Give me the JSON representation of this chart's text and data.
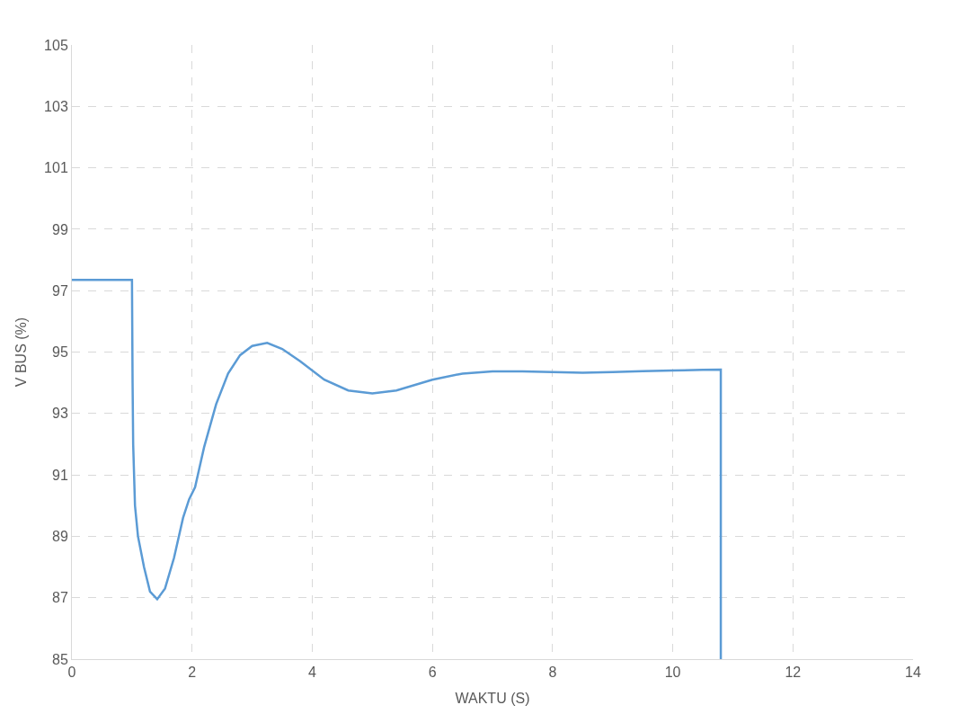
{
  "chart_data": {
    "type": "line",
    "xlabel": "WAKTU (S)",
    "ylabel": "V BUS (%)",
    "xlim": [
      0,
      14
    ],
    "xticks": [
      0,
      2,
      4,
      6,
      8,
      10,
      12,
      14
    ],
    "ylim": [
      85,
      105
    ],
    "yticks": [
      85,
      87,
      89,
      91,
      93,
      95,
      97,
      99,
      101,
      103,
      105
    ],
    "grid": true,
    "legend": false,
    "marker": "none",
    "line_style": "solid",
    "series": [
      {
        "color": "#5b9bd5",
        "x": [
          0,
          1.0,
          1.01,
          1.02,
          1.05,
          1.1,
          1.2,
          1.3,
          1.42,
          1.55,
          1.7,
          1.85,
          1.95,
          2.05,
          2.2,
          2.4,
          2.6,
          2.8,
          3.0,
          3.25,
          3.5,
          3.8,
          4.2,
          4.6,
          5.0,
          5.4,
          6.0,
          6.5,
          7.0,
          7.5,
          8.0,
          8.5,
          9.0,
          9.5,
          10.0,
          10.5,
          10.8,
          10.8
        ],
        "values": [
          97.35,
          97.35,
          94,
          92,
          90,
          89,
          88,
          87.2,
          86.95,
          87.3,
          88.3,
          89.6,
          90.2,
          90.6,
          91.9,
          93.3,
          94.3,
          94.9,
          95.2,
          95.3,
          95.1,
          94.7,
          94.1,
          93.75,
          93.65,
          93.75,
          94.1,
          94.3,
          94.37,
          94.37,
          94.35,
          94.33,
          94.35,
          94.38,
          94.4,
          94.42,
          94.43,
          85
        ]
      }
    ]
  }
}
